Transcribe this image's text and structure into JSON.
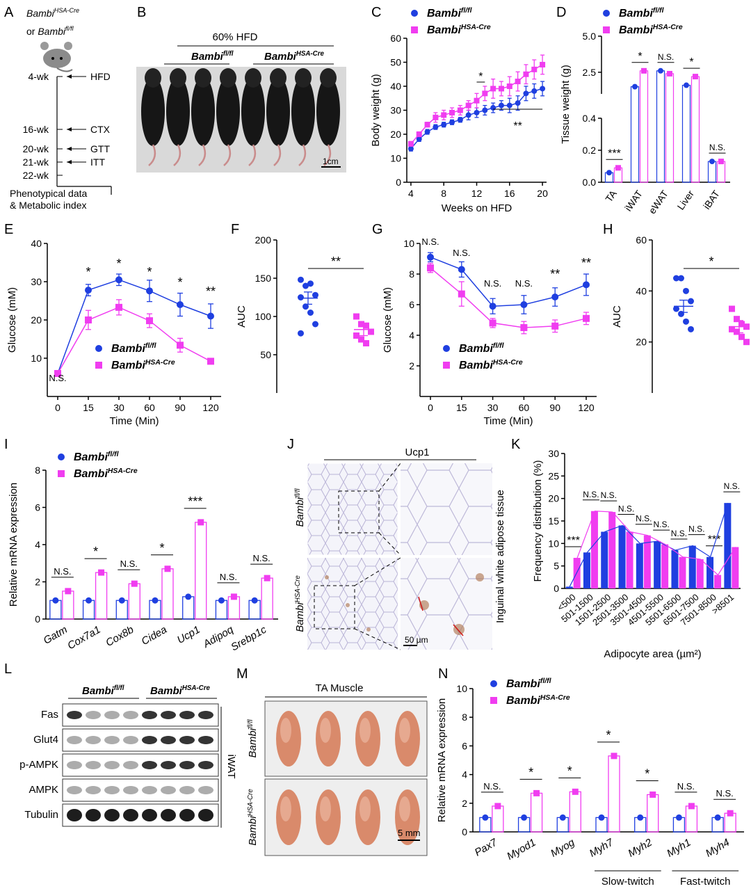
{
  "colors": {
    "fl": "#1f3fe0",
    "cre": "#f03df0",
    "axis": "#000000"
  },
  "panels": {
    "A": "A",
    "B": "B",
    "C": "C",
    "D": "D",
    "E": "E",
    "F": "F",
    "G": "G",
    "H": "H",
    "I": "I",
    "J": "J",
    "K": "K",
    "L": "L",
    "M": "M",
    "N": "N"
  },
  "genotypes": {
    "fl": {
      "base": "Bambi",
      "sup": "fl/fl"
    },
    "cre": {
      "base": "Bambi",
      "sup": "HSA-Cre"
    }
  },
  "panelA": {
    "or_text": "or ",
    "ticks": [
      "4-wk",
      "16-wk",
      "20-wk",
      "21-wk",
      "22-wk"
    ],
    "events": [
      "HFD",
      "CTX",
      "GTT",
      "ITT"
    ],
    "footer_1": "Phenotypical data",
    "footer_2": "& Metabolic index"
  },
  "panelB": {
    "diet": "60% HFD",
    "scale": "1cm"
  },
  "panelJ": {
    "stain": "Ucp1",
    "tissue": "Inguinal white adipose tissue",
    "scale": "50 µm"
  },
  "panelL": {
    "rows": [
      "Fas",
      "Glut4",
      "p-AMPK",
      "AMPK",
      "Tubulin"
    ],
    "tissue": "iWAT"
  },
  "panelM": {
    "title": "TA Muscle",
    "scale": "5 mm"
  },
  "chart_data": [
    {
      "panel": "C",
      "type": "line",
      "xlabel": "Weeks on HFD",
      "ylabel": "Body weight (g)",
      "xlim": [
        3.5,
        20.5
      ],
      "ylim": [
        0,
        60
      ],
      "xticks": [
        4,
        8,
        12,
        16,
        20
      ],
      "yticks": [
        0,
        10,
        20,
        30,
        40,
        50,
        60
      ],
      "x": [
        4,
        5,
        6,
        7,
        8,
        9,
        10,
        11,
        12,
        13,
        14,
        15,
        16,
        17,
        18,
        19,
        20
      ],
      "series": [
        {
          "name": "fl",
          "values": [
            14,
            18,
            21,
            23,
            24,
            25,
            26,
            28,
            29,
            30,
            31,
            32,
            32,
            33,
            37,
            38,
            39
          ],
          "err": [
            1,
            1,
            1,
            1,
            1,
            1,
            1,
            2,
            2,
            2,
            2,
            2,
            3,
            3,
            3,
            3,
            3
          ]
        },
        {
          "name": "cre",
          "values": [
            16,
            20,
            24,
            27,
            28,
            29,
            30,
            32,
            34,
            37,
            39,
            39,
            40,
            42,
            45,
            47,
            49
          ],
          "err": [
            1,
            1,
            1,
            2,
            2,
            2,
            2,
            2,
            3,
            3,
            4,
            3,
            4,
            4,
            4,
            4,
            4
          ]
        }
      ],
      "annotations": [
        "*",
        "**"
      ]
    },
    {
      "panel": "D",
      "type": "bar",
      "ylabel": "Tissue weight (g)",
      "categories": [
        "TA",
        "iWAT",
        "eWAT",
        "Liver",
        "iBAT"
      ],
      "yticks_low": [
        "0.0",
        "0.2",
        "0.4"
      ],
      "yticks_high": [
        "2.5",
        "5.0"
      ],
      "series": [
        {
          "name": "fl",
          "values": [
            0.06,
            1.5,
            2.6,
            1.6,
            0.13
          ]
        },
        {
          "name": "cre",
          "values": [
            0.09,
            2.6,
            2.4,
            2.2,
            0.13
          ]
        }
      ],
      "annotations": [
        "***",
        "*",
        "N.S.",
        "*",
        "N.S."
      ]
    },
    {
      "panel": "E",
      "type": "line",
      "xlabel": "Time (Min)",
      "ylabel": "Glucose (mM)",
      "categories": [
        "0",
        "15",
        "30",
        "60",
        "90",
        "120"
      ],
      "ylim": [
        0,
        40
      ],
      "yticks": [
        10,
        20,
        30,
        40
      ],
      "series": [
        {
          "name": "fl",
          "values": [
            6,
            27.8,
            30.5,
            27.6,
            24,
            21
          ],
          "err": [
            0.5,
            1.5,
            1.5,
            2.8,
            3,
            3.2
          ]
        },
        {
          "name": "cre",
          "values": [
            6,
            20,
            23.3,
            19.8,
            13.4,
            9.2
          ],
          "err": [
            0.5,
            2.5,
            2,
            1.8,
            1.8,
            0.6
          ]
        }
      ],
      "annotations": [
        "N.S.",
        "*",
        "*",
        "*",
        "*",
        "**"
      ]
    },
    {
      "panel": "F",
      "type": "scatter",
      "ylabel": "AUC",
      "ylim": [
        0,
        200
      ],
      "yticks": [
        50,
        100,
        150,
        200
      ],
      "series": [
        {
          "name": "fl",
          "values": [
            148,
            140,
            143,
            128,
            125,
            113,
            105,
            90,
            78
          ],
          "mean": 124
        },
        {
          "name": "cre",
          "values": [
            100,
            90,
            88,
            80,
            75,
            70,
            65
          ],
          "mean": 83
        }
      ],
      "annotations": [
        "**"
      ]
    },
    {
      "panel": "G",
      "type": "line",
      "xlabel": "Time (Min)",
      "ylabel": "Glucose (mM)",
      "categories": [
        "0",
        "15",
        "30",
        "60",
        "90",
        "120"
      ],
      "ylim": [
        0,
        10
      ],
      "yticks": [
        2,
        4,
        6,
        8,
        10
      ],
      "series": [
        {
          "name": "fl",
          "values": [
            9.1,
            8.3,
            5.9,
            6.0,
            6.5,
            7.3
          ],
          "err": [
            0.3,
            0.5,
            0.5,
            0.6,
            0.6,
            0.7
          ]
        },
        {
          "name": "cre",
          "values": [
            8.4,
            6.7,
            4.8,
            4.5,
            4.6,
            5.1
          ],
          "err": [
            0.3,
            0.8,
            0.3,
            0.4,
            0.4,
            0.4
          ]
        }
      ],
      "annotations": [
        "N.S.",
        "N.S.",
        "N.S.",
        "N.S.",
        "**",
        "**"
      ]
    },
    {
      "panel": "H",
      "type": "scatter",
      "ylabel": "AUC",
      "ylim": [
        0,
        60
      ],
      "yticks": [
        20,
        40,
        60
      ],
      "series": [
        {
          "name": "fl",
          "values": [
            45,
            45,
            40,
            36,
            33,
            31,
            28,
            25
          ],
          "mean": 34
        },
        {
          "name": "cre",
          "values": [
            33,
            29,
            27,
            26,
            25,
            24,
            22,
            20
          ],
          "mean": 26
        }
      ],
      "annotations": [
        "*"
      ]
    },
    {
      "panel": "I",
      "type": "bar",
      "ylabel": "Relative mRNA expression",
      "ylim": [
        0,
        8
      ],
      "yticks": [
        0,
        2,
        4,
        6,
        8
      ],
      "categories": [
        "Gatm",
        "Cox7a1",
        "Cox8b",
        "Cidea",
        "Ucp1",
        "Adipoq",
        "Srebp1c"
      ],
      "series": [
        {
          "name": "fl",
          "values": [
            1,
            1,
            1,
            1,
            1.2,
            1,
            1
          ]
        },
        {
          "name": "cre",
          "values": [
            1.5,
            2.5,
            1.9,
            2.7,
            5.2,
            1.2,
            2.2
          ]
        }
      ],
      "annotations": [
        "N.S.",
        "*",
        "N.S.",
        "*",
        "***",
        "N.S.",
        "N.S."
      ]
    },
    {
      "panel": "K",
      "type": "bar",
      "xlabel": "Adipocyte area (µm²)",
      "ylabel": "Frequency distribution (%)",
      "ylim": [
        0,
        30
      ],
      "yticks": [
        0,
        5,
        10,
        15,
        20,
        25,
        30
      ],
      "categories": [
        "<500",
        "501-1500",
        "1501-2500",
        "2501-3500",
        "3501-4500",
        "4501-5500",
        "5501-6500",
        "6501-7500",
        "7501-8500",
        ">8501"
      ],
      "series": [
        {
          "name": "fl",
          "values": [
            0.4,
            8,
            12.6,
            14,
            10,
            10.5,
            8.5,
            9.5,
            7,
            19
          ]
        },
        {
          "name": "cre",
          "values": [
            6.8,
            17.2,
            17,
            12.6,
            11.8,
            9.8,
            7,
            6.5,
            3,
            9.2
          ]
        }
      ],
      "annotations": [
        "***",
        "N.S.",
        "N.S.",
        "N.S.",
        "N.S.",
        "N.S.",
        "N.S.",
        "N.S.",
        "***",
        "N.S."
      ]
    },
    {
      "panel": "N",
      "type": "bar",
      "ylabel": "Relative mRNA expression",
      "ylim": [
        0,
        10
      ],
      "yticks": [
        0,
        2,
        4,
        6,
        8,
        10
      ],
      "categories": [
        "Pax7",
        "Myod1",
        "Myog",
        "Myh7",
        "Myh2",
        "Myh1",
        "Myh4"
      ],
      "groups": [
        "Slow-twitch",
        "Fast-twitch"
      ],
      "series": [
        {
          "name": "fl",
          "values": [
            1,
            1,
            1,
            1,
            1,
            1,
            1
          ]
        },
        {
          "name": "cre",
          "values": [
            1.8,
            2.7,
            2.8,
            5.3,
            2.6,
            1.8,
            1.3
          ]
        }
      ],
      "annotations": [
        "N.S.",
        "*",
        "*",
        "*",
        "*",
        "N.S.",
        "N.S."
      ]
    }
  ]
}
